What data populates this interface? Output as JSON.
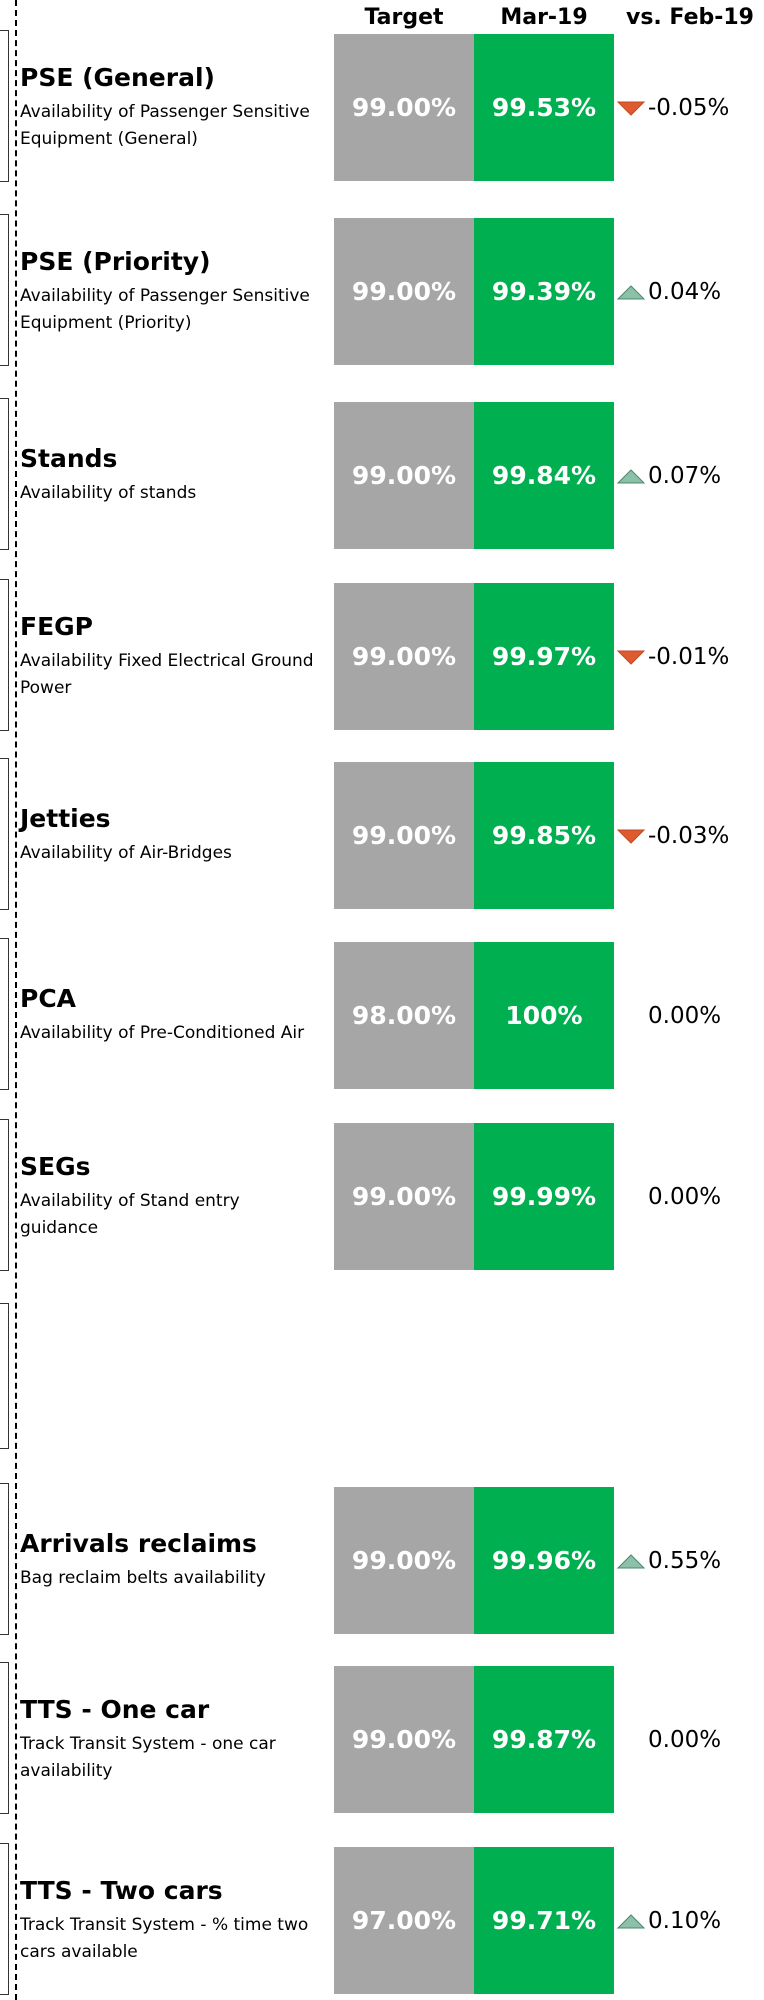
{
  "header": {
    "target": "Target",
    "current": "Mar-19",
    "comparison": "vs. Feb-19"
  },
  "rows": [
    {
      "name": "PSE (General)",
      "description": "Availability of Passenger Sensitive Equipment (General)",
      "target": "99.00%",
      "current": "99.53%",
      "change": "-0.05%",
      "trend": "down"
    },
    {
      "name": "PSE (Priority)",
      "description": "Availability of Passenger Sensitive Equipment (Priority)",
      "target": "99.00%",
      "current": "99.39%",
      "change": "0.04%",
      "trend": "up"
    },
    {
      "name": "Stands",
      "description": "Availability of stands",
      "target": "99.00%",
      "current": "99.84%",
      "change": "0.07%",
      "trend": "up"
    },
    {
      "name": "FEGP",
      "description": "Availability Fixed Electrical Ground Power",
      "target": "99.00%",
      "current": "99.97%",
      "change": "-0.01%",
      "trend": "down"
    },
    {
      "name": "Jetties",
      "description": "Availability of Air-Bridges",
      "target": "99.00%",
      "current": "99.85%",
      "change": "-0.03%",
      "trend": "down"
    },
    {
      "name": "PCA",
      "description": "Availability of Pre-Conditioned Air",
      "target": "98.00%",
      "current": "100%",
      "change": "0.00%",
      "trend": "none"
    },
    {
      "name": "SEGs",
      "description": "Availability of Stand entry guidance",
      "target": "99.00%",
      "current": "99.99%",
      "change": "0.00%",
      "trend": "none"
    },
    {
      "name": "Arrivals reclaims",
      "description": "Bag reclaim belts availability",
      "target": "99.00%",
      "current": "99.96%",
      "change": "0.55%",
      "trend": "up"
    },
    {
      "name": "TTS - One car",
      "description": "Track Transit System - one car availability",
      "target": "99.00%",
      "current": "99.87%",
      "change": "0.00%",
      "trend": "none"
    },
    {
      "name": "TTS - Two cars",
      "description": "Track Transit System - % time two cars available",
      "target": "97.00%",
      "current": "99.71%",
      "change": "0.10%",
      "trend": "up"
    }
  ]
}
